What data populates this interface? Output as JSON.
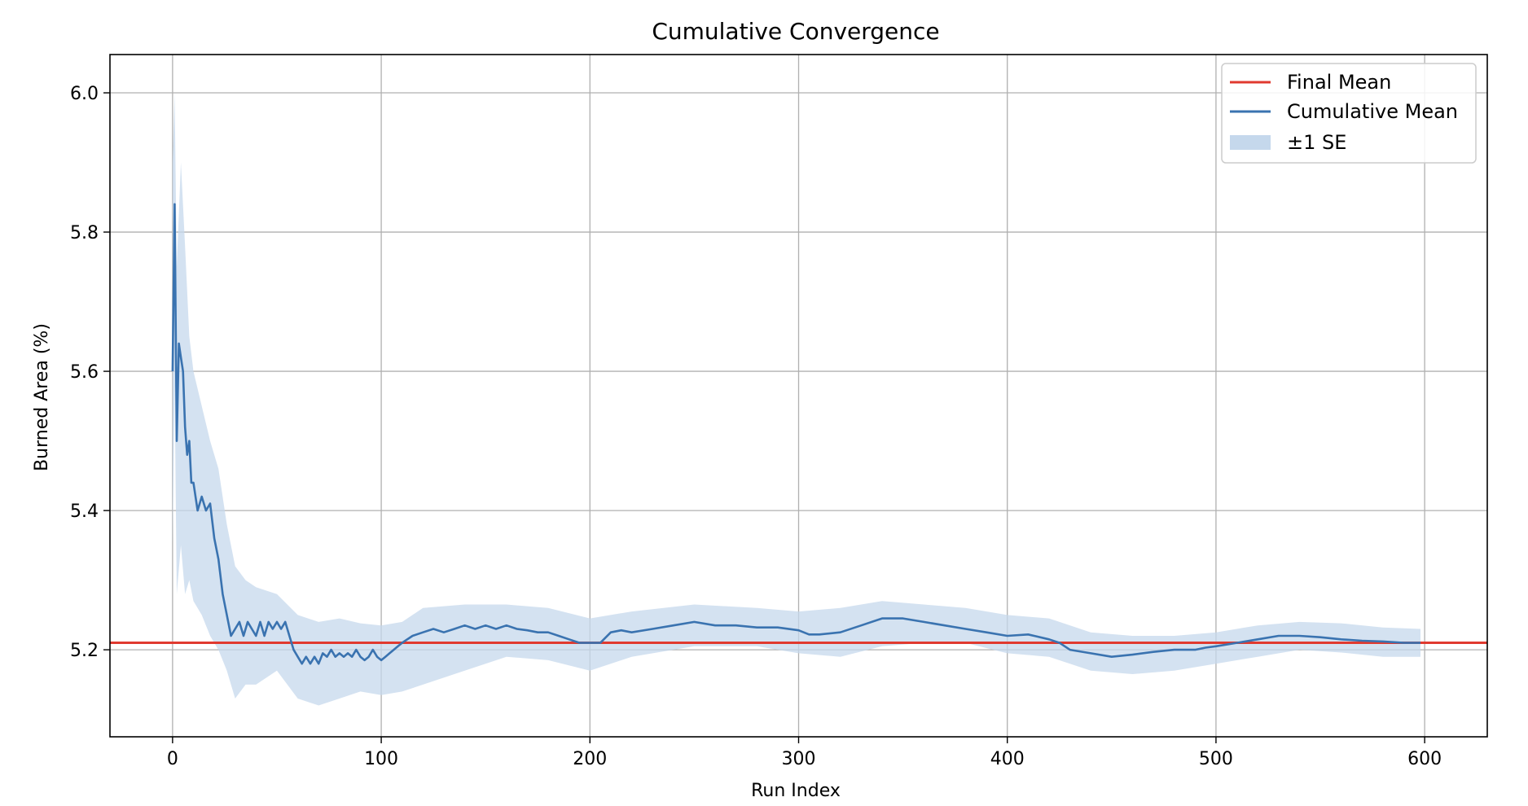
{
  "chart_data": {
    "type": "line",
    "title": "Cumulative Convergence",
    "xlabel": "Run Index",
    "ylabel": "Burned Area (%)",
    "xlim": [
      -30,
      630
    ],
    "ylim": [
      5.075,
      6.055
    ],
    "xticks": [
      0,
      100,
      200,
      300,
      400,
      500,
      600
    ],
    "yticks": [
      5.2,
      5.4,
      5.6,
      5.8,
      6.0
    ],
    "xtick_labels": [
      "0",
      "100",
      "200",
      "300",
      "400",
      "500",
      "600"
    ],
    "ytick_labels": [
      "5.2",
      "5.4",
      "5.6",
      "5.8",
      "6.0"
    ],
    "grid": true,
    "legend_position": "top-right",
    "legend": [
      "Final Mean",
      "Cumulative Mean",
      "±1 SE"
    ],
    "final_mean": 5.21,
    "colors": {
      "final_mean": "#e03a2f",
      "cumulative_mean": "#3a73b0",
      "se_band": "#c5d8ec",
      "grid": "#b0b0b0"
    },
    "series": [
      {
        "name": "Cumulative Mean",
        "x": [
          0,
          1,
          2,
          3,
          4,
          5,
          6,
          7,
          8,
          9,
          10,
          12,
          14,
          16,
          18,
          20,
          22,
          24,
          26,
          28,
          30,
          32,
          34,
          36,
          38,
          40,
          42,
          44,
          46,
          48,
          50,
          52,
          54,
          56,
          58,
          60,
          62,
          64,
          66,
          68,
          70,
          72,
          74,
          76,
          78,
          80,
          82,
          84,
          86,
          88,
          90,
          92,
          94,
          96,
          98,
          100,
          102,
          104,
          106,
          108,
          110,
          115,
          120,
          125,
          130,
          135,
          140,
          145,
          150,
          155,
          160,
          165,
          170,
          175,
          180,
          185,
          190,
          195,
          200,
          205,
          210,
          215,
          220,
          230,
          240,
          250,
          260,
          270,
          280,
          290,
          300,
          305,
          310,
          320,
          330,
          340,
          350,
          360,
          370,
          380,
          390,
          400,
          410,
          420,
          425,
          430,
          440,
          450,
          460,
          470,
          480,
          490,
          495,
          500,
          510,
          520,
          530,
          540,
          550,
          560,
          570,
          580,
          590,
          598
        ],
        "values": [
          5.6,
          5.84,
          5.5,
          5.64,
          5.62,
          5.6,
          5.52,
          5.48,
          5.5,
          5.44,
          5.44,
          5.4,
          5.42,
          5.4,
          5.41,
          5.36,
          5.33,
          5.28,
          5.25,
          5.22,
          5.23,
          5.24,
          5.22,
          5.24,
          5.23,
          5.22,
          5.24,
          5.22,
          5.24,
          5.23,
          5.24,
          5.23,
          5.24,
          5.22,
          5.2,
          5.19,
          5.18,
          5.19,
          5.18,
          5.19,
          5.18,
          5.195,
          5.19,
          5.2,
          5.19,
          5.195,
          5.19,
          5.195,
          5.19,
          5.2,
          5.19,
          5.185,
          5.19,
          5.2,
          5.19,
          5.185,
          5.19,
          5.195,
          5.2,
          5.205,
          5.21,
          5.22,
          5.225,
          5.23,
          5.225,
          5.23,
          5.235,
          5.23,
          5.235,
          5.23,
          5.235,
          5.23,
          5.228,
          5.225,
          5.225,
          5.22,
          5.215,
          5.21,
          5.21,
          5.21,
          5.225,
          5.228,
          5.225,
          5.23,
          5.235,
          5.24,
          5.235,
          5.235,
          5.232,
          5.232,
          5.228,
          5.222,
          5.222,
          5.225,
          5.235,
          5.245,
          5.245,
          5.24,
          5.235,
          5.23,
          5.225,
          5.22,
          5.222,
          5.215,
          5.21,
          5.2,
          5.195,
          5.19,
          5.193,
          5.197,
          5.2,
          5.2,
          5.203,
          5.205,
          5.21,
          5.215,
          5.22,
          5.22,
          5.218,
          5.215,
          5.213,
          5.212,
          5.21,
          5.21
        ]
      },
      {
        "name": "±1 SE",
        "x": [
          0,
          1,
          2,
          4,
          6,
          8,
          10,
          14,
          18,
          22,
          26,
          30,
          35,
          40,
          50,
          60,
          70,
          80,
          90,
          100,
          110,
          120,
          140,
          160,
          180,
          200,
          220,
          250,
          280,
          300,
          320,
          340,
          360,
          380,
          400,
          420,
          440,
          460,
          480,
          500,
          520,
          540,
          560,
          580,
          598
        ],
        "upper": [
          5.9,
          6.0,
          5.75,
          5.9,
          5.78,
          5.65,
          5.6,
          5.55,
          5.5,
          5.46,
          5.38,
          5.32,
          5.3,
          5.29,
          5.28,
          5.25,
          5.24,
          5.245,
          5.238,
          5.235,
          5.24,
          5.26,
          5.265,
          5.265,
          5.26,
          5.245,
          5.255,
          5.265,
          5.26,
          5.255,
          5.26,
          5.27,
          5.265,
          5.26,
          5.25,
          5.245,
          5.225,
          5.22,
          5.22,
          5.225,
          5.235,
          5.24,
          5.238,
          5.232,
          5.23
        ],
        "lower": [
          5.35,
          5.58,
          5.28,
          5.35,
          5.28,
          5.3,
          5.27,
          5.25,
          5.22,
          5.2,
          5.17,
          5.13,
          5.15,
          5.15,
          5.17,
          5.13,
          5.12,
          5.13,
          5.14,
          5.135,
          5.14,
          5.15,
          5.17,
          5.19,
          5.185,
          5.17,
          5.19,
          5.205,
          5.205,
          5.195,
          5.19,
          5.205,
          5.21,
          5.21,
          5.195,
          5.19,
          5.17,
          5.165,
          5.17,
          5.18,
          5.19,
          5.2,
          5.196,
          5.19,
          5.19
        ]
      }
    ]
  }
}
